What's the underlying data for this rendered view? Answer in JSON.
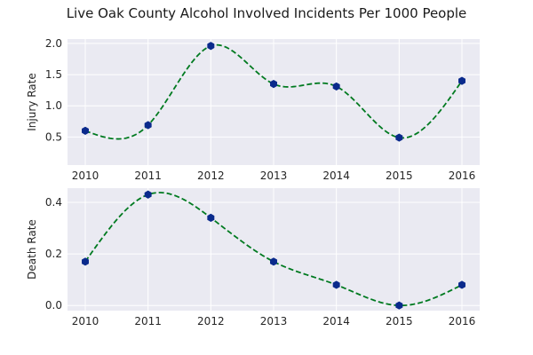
{
  "chart_data": {
    "title": "Live Oak County Alcohol Involved Incidents Per 1000 People",
    "colors": {
      "plot_background": "#eaeaf2",
      "grid": "#ffffff",
      "line": "#007a20",
      "marker": "#0a2a8c"
    },
    "subplots": [
      {
        "type": "line",
        "line_style": "dashed-smoothed",
        "marker": "hexagon",
        "grid": true,
        "ylabel": "Injury Rate",
        "x": [
          "2010",
          "2011",
          "2012",
          "2013",
          "2014",
          "2015",
          "2016"
        ],
        "y": [
          0.6,
          0.69,
          1.96,
          1.35,
          1.31,
          0.49,
          1.4
        ],
        "yticks": [
          "0.5",
          "1.0",
          "1.5",
          "2.0"
        ],
        "ylim": [
          0.05,
          2.07
        ]
      },
      {
        "type": "line",
        "line_style": "dashed-smoothed",
        "marker": "hexagon",
        "grid": true,
        "ylabel": "Death Rate",
        "x": [
          "2010",
          "2011",
          "2012",
          "2013",
          "2014",
          "2015",
          "2016"
        ],
        "y": [
          0.17,
          0.43,
          0.34,
          0.17,
          0.08,
          0.0,
          0.08
        ],
        "yticks": [
          "0.0",
          "0.2",
          "0.4"
        ],
        "ylim": [
          -0.02,
          0.455
        ]
      }
    ]
  }
}
